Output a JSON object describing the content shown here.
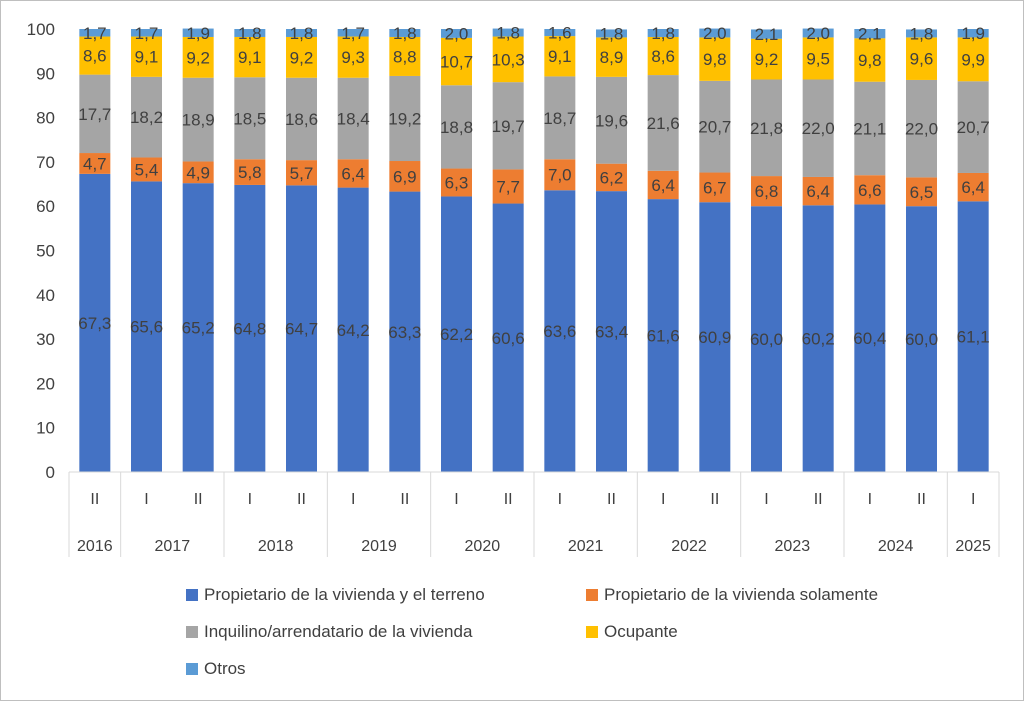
{
  "chart_data": {
    "type": "bar",
    "stacked": true,
    "x": [
      {
        "sub": "II",
        "year": "2016"
      },
      {
        "sub": "I",
        "year": "2017"
      },
      {
        "sub": "II",
        "year": "2017"
      },
      {
        "sub": "I",
        "year": "2018"
      },
      {
        "sub": "II",
        "year": "2018"
      },
      {
        "sub": "I",
        "year": "2019"
      },
      {
        "sub": "II",
        "year": "2019"
      },
      {
        "sub": "I",
        "year": "2020"
      },
      {
        "sub": "II",
        "year": "2020"
      },
      {
        "sub": "I",
        "year": "2021"
      },
      {
        "sub": "II",
        "year": "2021"
      },
      {
        "sub": "I",
        "year": "2022"
      },
      {
        "sub": "II",
        "year": "2022"
      },
      {
        "sub": "I",
        "year": "2023"
      },
      {
        "sub": "II",
        "year": "2023"
      },
      {
        "sub": "I",
        "year": "2024"
      },
      {
        "sub": "II",
        "year": "2024"
      },
      {
        "sub": "I",
        "year": "2025"
      }
    ],
    "years": [
      "2016",
      "2017",
      "2018",
      "2019",
      "2020",
      "2021",
      "2022",
      "2023",
      "2024",
      "2025"
    ],
    "series": [
      {
        "name": "Propietario de la vivienda y el terreno",
        "color": "#4472C4",
        "label_color": "#404040",
        "values": [
          67.3,
          65.6,
          65.2,
          64.8,
          64.7,
          64.2,
          63.3,
          62.2,
          60.6,
          63.6,
          63.4,
          61.6,
          60.9,
          60.0,
          60.2,
          60.4,
          60.0,
          61.1
        ]
      },
      {
        "name": "Propietario de la vivienda solamente",
        "color": "#ED7D31",
        "label_color": "#404040",
        "values": [
          4.7,
          5.4,
          4.9,
          5.8,
          5.7,
          6.4,
          6.9,
          6.3,
          7.7,
          7.0,
          6.2,
          6.4,
          6.7,
          6.8,
          6.4,
          6.6,
          6.5,
          6.4
        ]
      },
      {
        "name": "Inquilino/arrendatario de la vivienda",
        "color": "#A5A5A5",
        "label_color": "#404040",
        "values": [
          17.7,
          18.2,
          18.9,
          18.5,
          18.6,
          18.4,
          19.2,
          18.8,
          19.7,
          18.7,
          19.6,
          21.6,
          20.7,
          21.8,
          22.0,
          21.1,
          22.0,
          20.7
        ]
      },
      {
        "name": "Ocupante",
        "color": "#FFC000",
        "label_color": "#404040",
        "values": [
          8.6,
          9.1,
          9.2,
          9.1,
          9.2,
          9.3,
          8.8,
          10.7,
          10.3,
          9.1,
          8.9,
          8.6,
          9.8,
          9.2,
          9.5,
          9.8,
          9.6,
          9.9
        ]
      },
      {
        "name": "Otros",
        "color": "#5B9BD5",
        "label_color": "#404040",
        "values": [
          1.7,
          1.7,
          1.9,
          1.8,
          1.8,
          1.7,
          1.8,
          2.0,
          1.8,
          1.6,
          1.8,
          1.8,
          2.0,
          2.1,
          2.0,
          2.1,
          1.8,
          1.9
        ]
      }
    ],
    "ylim": [
      0,
      100
    ],
    "yticks": [
      0,
      10,
      20,
      30,
      40,
      50,
      60,
      70,
      80,
      90,
      100
    ],
    "ytick_labels": [
      "0",
      "10",
      "20",
      "30",
      "40",
      "50",
      "60",
      "70",
      "80",
      "90",
      "100"
    ],
    "title": "",
    "xlabel": "",
    "ylabel": "",
    "decimal_separator": ",",
    "grid": false,
    "legend_position": "bottom"
  }
}
